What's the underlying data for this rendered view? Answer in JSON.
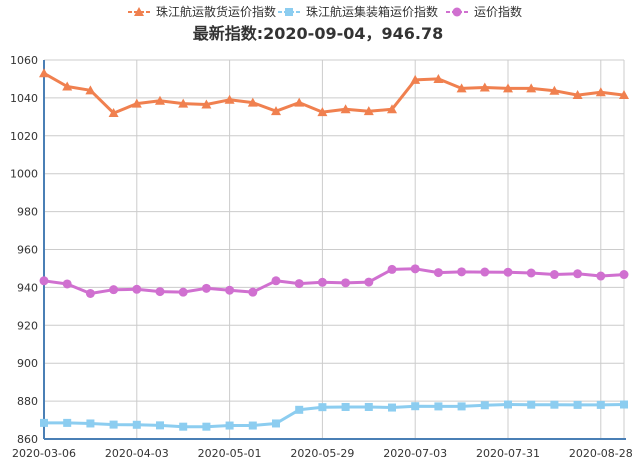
{
  "chart_data": {
    "type": "line",
    "title": "最新指数:2020-09-04，946.78",
    "xlabel": "",
    "ylabel": "",
    "ylim": [
      860,
      1060
    ],
    "yticks": [
      860,
      880,
      900,
      920,
      940,
      960,
      980,
      1000,
      1020,
      1040,
      1060
    ],
    "xtick_labels": [
      "2020-03-06",
      "2020-04-03",
      "2020-05-01",
      "2020-05-29",
      "2020-07-03",
      "2020-07-31",
      "2020-08-28"
    ],
    "xtick_index": [
      0,
      4,
      8,
      12,
      16,
      20,
      24
    ],
    "grid": true,
    "legend_position": "top",
    "x": [
      "2020-03-06",
      "2020-03-13",
      "2020-03-20",
      "2020-03-27",
      "2020-04-03",
      "2020-04-10",
      "2020-04-17",
      "2020-04-24",
      "2020-05-01",
      "2020-05-08",
      "2020-05-15",
      "2020-05-22",
      "2020-05-29",
      "2020-06-05",
      "2020-06-12",
      "2020-06-19",
      "2020-07-03",
      "2020-07-10",
      "2020-07-17",
      "2020-07-24",
      "2020-07-31",
      "2020-08-07",
      "2020-08-14",
      "2020-08-21",
      "2020-08-28",
      "2020-09-04"
    ],
    "series": [
      {
        "name": "珠江航运散货运价指数",
        "color": "#f0804f",
        "marker": "triangle",
        "values": [
          1053,
          1046,
          1044,
          1032,
          1037,
          1038.5,
          1037,
          1036.5,
          1039,
          1037.5,
          1033,
          1037.5,
          1032.5,
          1034,
          1033,
          1034,
          1049.5,
          1050,
          1045,
          1045.5,
          1045,
          1045,
          1043.8,
          1041.5,
          1043,
          1041.5
        ]
      },
      {
        "name": "珠江航运集装箱运价指数",
        "color": "#8ccdf0",
        "marker": "square",
        "values": [
          868.5,
          868.5,
          868.2,
          867.6,
          867.5,
          867.2,
          866.5,
          866.5,
          867.1,
          867.1,
          868.2,
          875.4,
          876.8,
          876.9,
          876.9,
          876.6,
          877.3,
          877.2,
          877.2,
          877.8,
          878.2,
          878.1,
          878.1,
          878,
          878,
          878.2
        ]
      },
      {
        "name": "运价指数",
        "color": "#d070d0",
        "marker": "circle",
        "values": [
          943.5,
          941.8,
          936.8,
          938.8,
          939,
          937.8,
          937.5,
          939.5,
          938.5,
          937.5,
          943.5,
          942,
          942.7,
          942.4,
          942.8,
          949.5,
          949.8,
          947.8,
          948.2,
          948.1,
          948,
          947.6,
          946.8,
          947.2,
          946,
          946.78
        ]
      }
    ]
  }
}
